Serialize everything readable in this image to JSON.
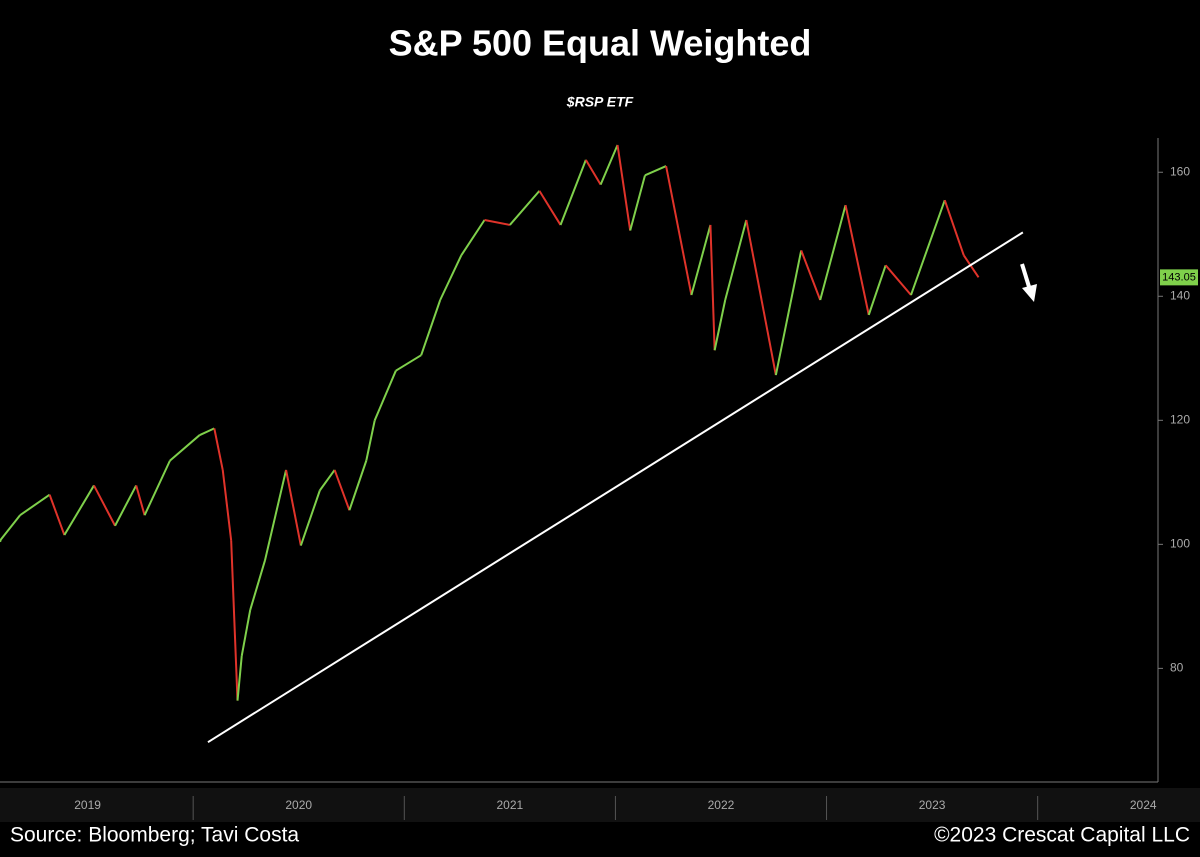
{
  "chart_data": {
    "type": "line",
    "title": "S&P 500 Equal Weighted",
    "subtitle": "$RSP ETF",
    "source": "Source: Bloomberg; Tavi Costa",
    "copyright": "©2023 Crescat Capital LLC",
    "x": [
      2019.085,
      2019.18,
      2019.32,
      2019.39,
      2019.53,
      2019.63,
      2019.73,
      2019.77,
      2019.89,
      2020.03,
      2020.1,
      2020.14,
      2020.18,
      2020.21,
      2020.23,
      2020.27,
      2020.34,
      2020.44,
      2020.51,
      2020.6,
      2020.67,
      2020.74,
      2020.82,
      2020.86,
      2020.96,
      2021.08,
      2021.17,
      2021.27,
      2021.38,
      2021.5,
      2021.64,
      2021.74,
      2021.86,
      2021.93,
      2022.01,
      2022.07,
      2022.14,
      2022.24,
      2022.36,
      2022.45,
      2022.47,
      2022.52,
      2022.62,
      2022.76,
      2022.88,
      2022.97,
      2023.09,
      2023.2,
      2023.28,
      2023.4,
      2023.56,
      2023.65,
      2023.72
    ],
    "series": [
      {
        "name": "$RSP",
        "values": [
          100.6,
          104.7,
          108,
          101.5,
          109.5,
          103,
          109.5,
          104.7,
          113.5,
          117.6,
          118.7,
          112,
          100.6,
          74.8,
          82,
          89.4,
          97.4,
          112,
          99.8,
          108.7,
          112,
          105.5,
          113.5,
          120,
          128,
          130.5,
          139.4,
          146.6,
          152.3,
          151.5,
          157,
          151.5,
          162,
          158,
          164.4,
          150.6,
          159.5,
          161,
          140.2,
          151.5,
          131.3,
          139.4,
          152.3,
          127.3,
          147.4,
          139.4,
          154.7,
          137,
          145,
          140.2,
          155.5,
          146.6,
          143.05
        ]
      }
    ],
    "up_color": "#7fd04b",
    "down_color": "#e0332a",
    "last_price": 143.05,
    "trendline": {
      "x": [
        2020.07,
        2023.93
      ],
      "values": [
        68.1,
        150.3
      ],
      "color": "#ffffff"
    },
    "xlim": [
      2019.085,
      2024.57
    ],
    "xticks": [
      {
        "value": 2019.5,
        "label": "2019"
      },
      {
        "value": 2020.5,
        "label": "2020"
      },
      {
        "value": 2021.5,
        "label": "2021"
      },
      {
        "value": 2022.5,
        "label": "2022"
      },
      {
        "value": 2023.5,
        "label": "2023"
      },
      {
        "value": 2024.5,
        "label": "2024"
      }
    ],
    "ylim": [
      62,
      165.2
    ],
    "yticks": [
      80,
      100,
      120,
      140,
      160
    ]
  }
}
